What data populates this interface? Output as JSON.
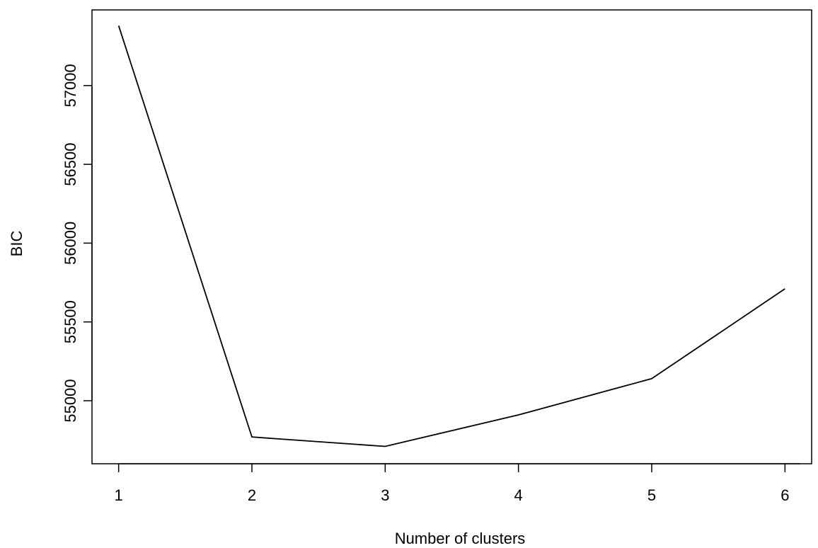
{
  "chart_data": {
    "type": "line",
    "title": "",
    "xlabel": "Number of clusters",
    "ylabel": "BIC",
    "x": [
      1,
      2,
      3,
      4,
      5,
      6
    ],
    "y": [
      57380,
      54770,
      54710,
      54910,
      55140,
      55710
    ],
    "xticks": [
      "1",
      "2",
      "3",
      "4",
      "5",
      "6"
    ],
    "yticks": [
      55000,
      55500,
      56000,
      56500,
      57000
    ],
    "yticks_text": [
      "55000",
      "55500",
      "56000",
      "56500",
      "57000"
    ],
    "xlim": [
      0.8,
      6.2
    ],
    "ylim": [
      54600,
      57480
    ],
    "grid": false,
    "line_color": "#000000"
  }
}
